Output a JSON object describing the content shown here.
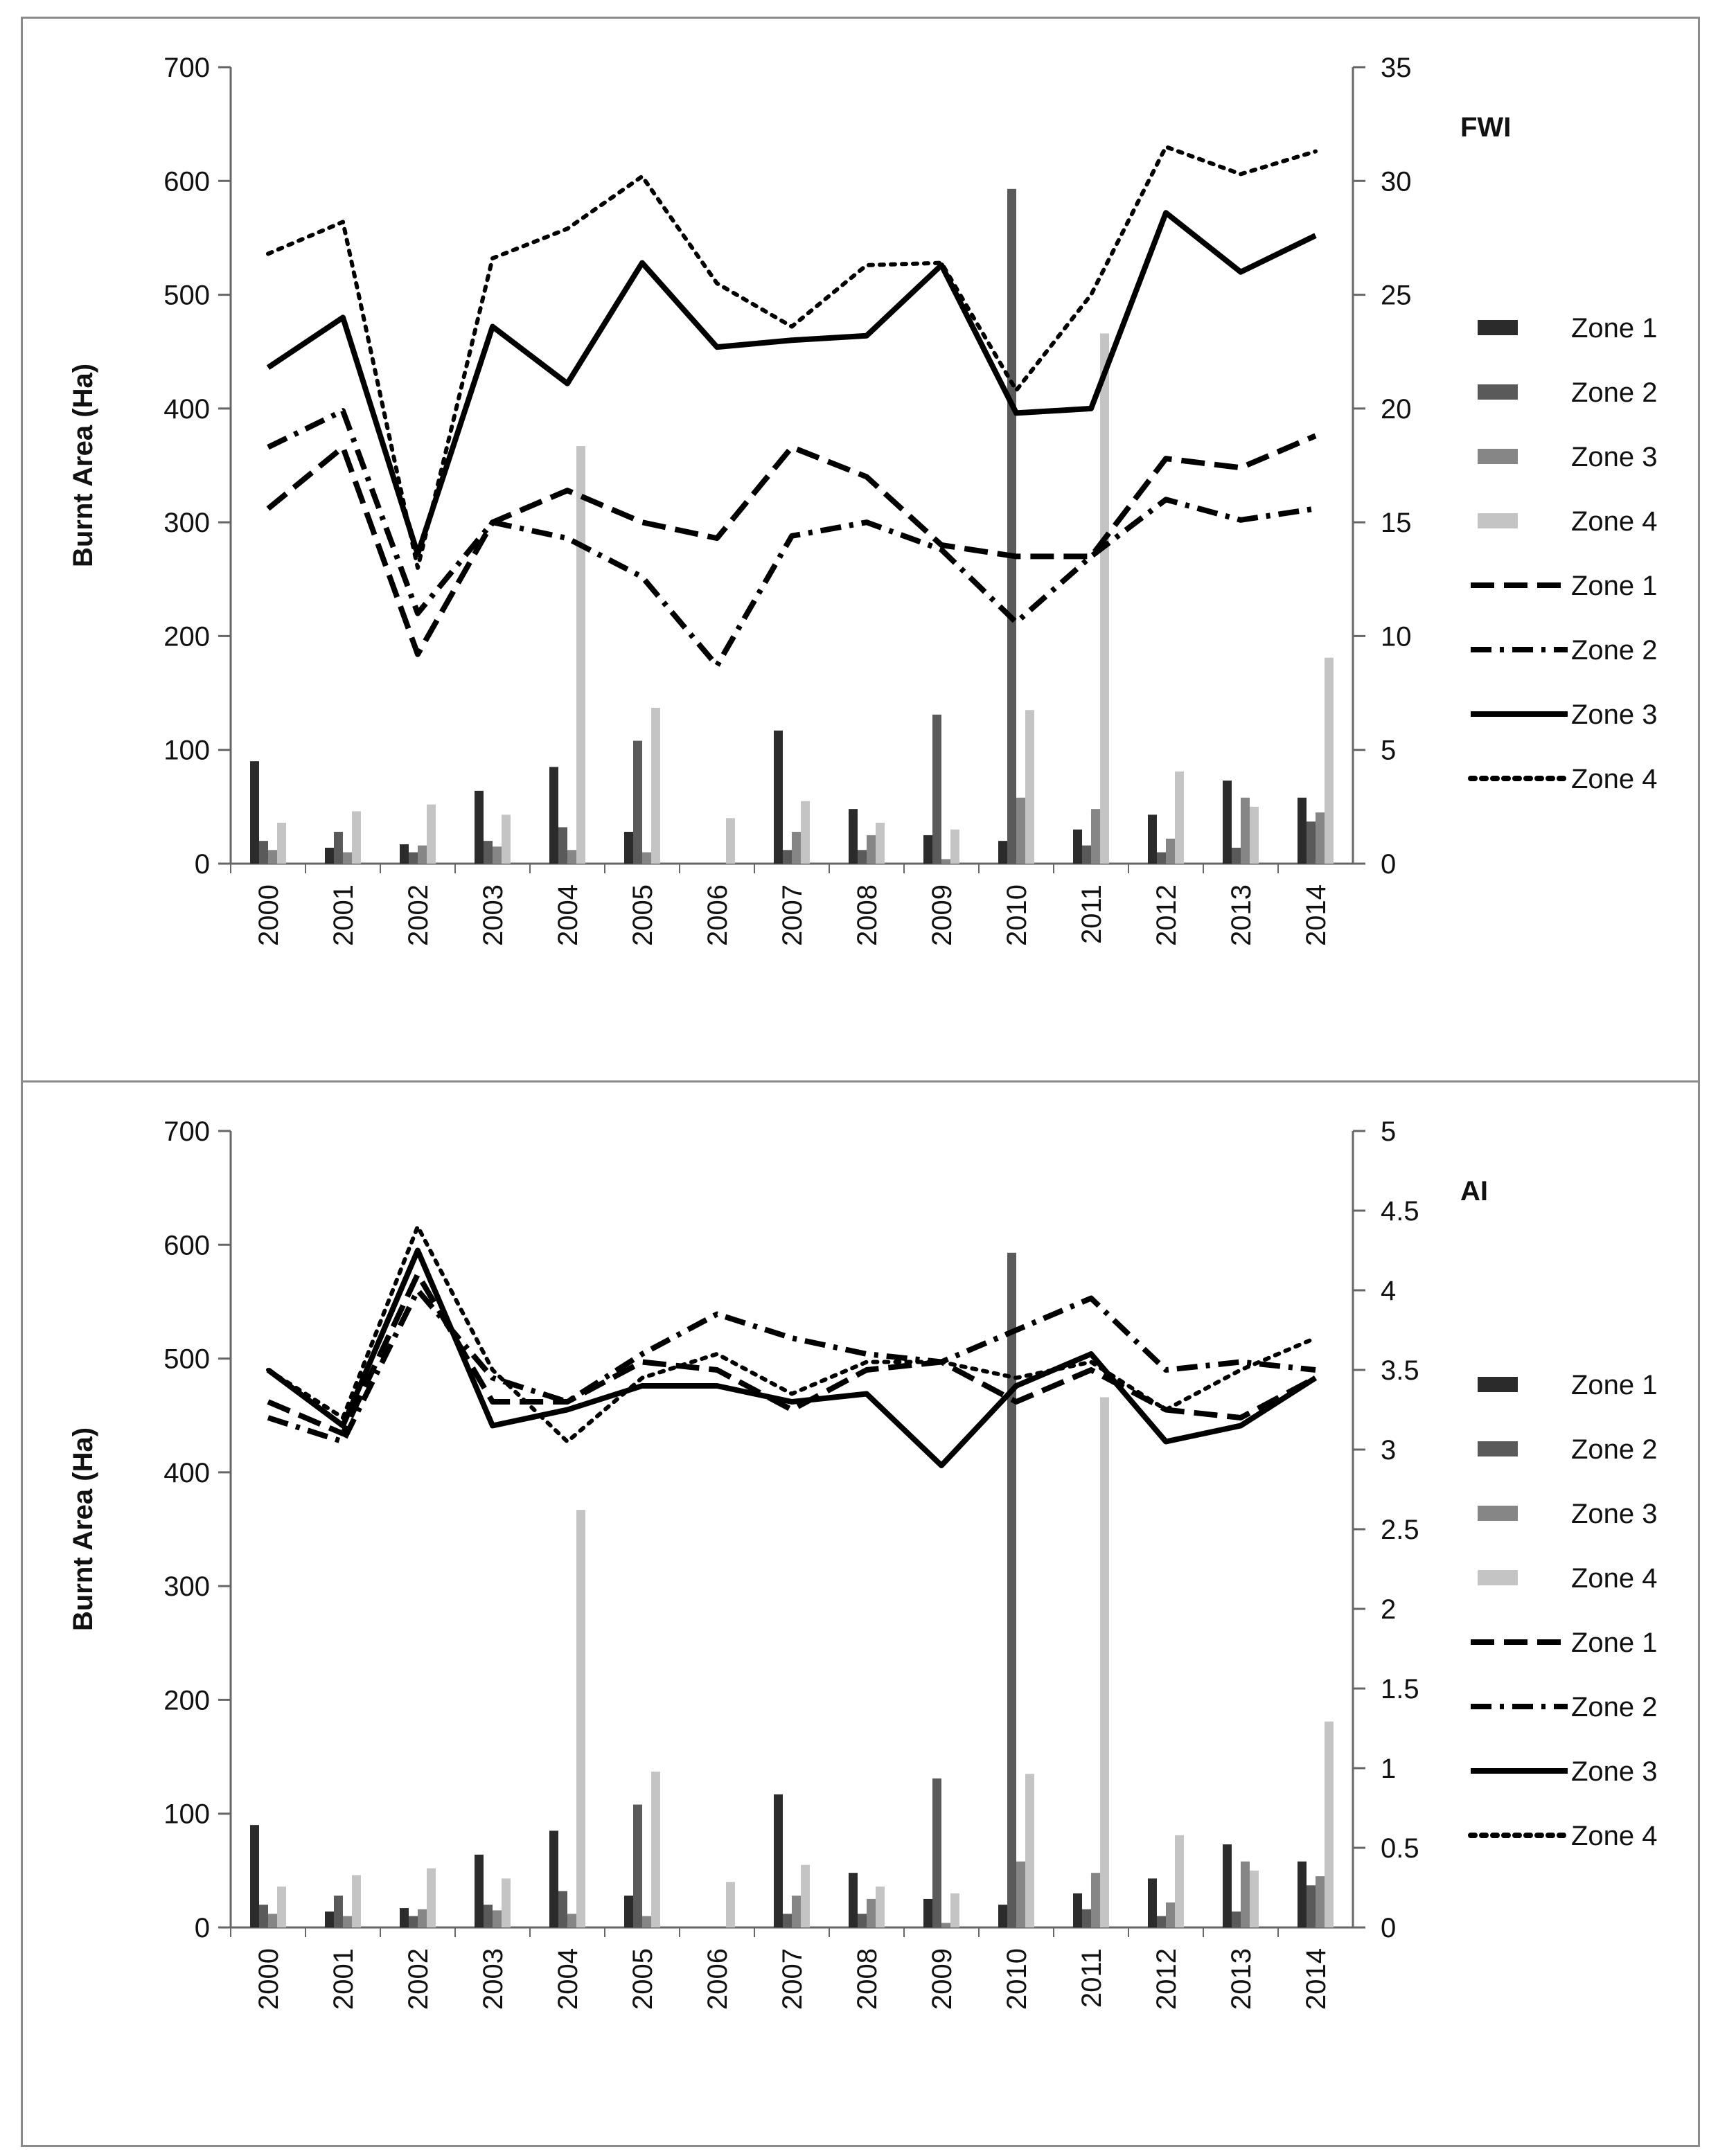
{
  "chart_data": [
    {
      "type": "bar+line",
      "title": "FWI",
      "ylabel": "Burnt Area (Ha)",
      "y2label": "",
      "ylim": [
        0,
        700
      ],
      "yticks": [
        "0",
        "100",
        "200",
        "300",
        "400",
        "500",
        "600",
        "700"
      ],
      "y2lim": [
        0,
        35
      ],
      "y2ticks": [
        "0",
        "5",
        "10",
        "15",
        "20",
        "25",
        "30",
        "35"
      ],
      "categories": [
        "2000",
        "2001",
        "2002",
        "2003",
        "2004",
        "2005",
        "2006",
        "2007",
        "2008",
        "2009",
        "2010",
        "2011",
        "2012",
        "2013",
        "2014"
      ],
      "bar_series": [
        {
          "name": "Zone 1",
          "color": "#2b2b2b",
          "values": [
            90,
            14,
            17,
            64,
            85,
            28,
            0,
            117,
            48,
            25,
            20,
            30,
            43,
            73,
            58
          ]
        },
        {
          "name": "Zone 2",
          "color": "#5a5a5a",
          "values": [
            20,
            28,
            10,
            20,
            32,
            108,
            0,
            12,
            12,
            131,
            593,
            16,
            10,
            14,
            37
          ]
        },
        {
          "name": "Zone 3",
          "color": "#868686",
          "values": [
            12,
            10,
            16,
            15,
            12,
            10,
            0,
            28,
            25,
            4,
            58,
            48,
            22,
            58,
            45
          ]
        },
        {
          "name": "Zone 4",
          "color": "#c4c4c4",
          "values": [
            36,
            46,
            52,
            43,
            367,
            137,
            40,
            55,
            36,
            30,
            135,
            466,
            81,
            50,
            181
          ]
        }
      ],
      "line_series": [
        {
          "name": "Zone 1",
          "style": "dash",
          "values": [
            15.6,
            18.3,
            9.2,
            15.0,
            16.4,
            15.0,
            14.3,
            18.3,
            17.0,
            14.0,
            13.5,
            13.5,
            17.8,
            17.4,
            18.8
          ]
        },
        {
          "name": "Zone 2",
          "style": "dashdot",
          "values": [
            18.3,
            19.9,
            11.0,
            15.0,
            14.3,
            12.6,
            8.7,
            14.4,
            15.0,
            13.8,
            10.6,
            13.5,
            16.0,
            15.1,
            15.6
          ]
        },
        {
          "name": "Zone 3",
          "style": "solid",
          "values": [
            21.8,
            24.0,
            13.6,
            23.6,
            21.1,
            26.4,
            22.7,
            23.0,
            23.2,
            26.3,
            19.8,
            20.0,
            28.6,
            26.0,
            27.6
          ]
        },
        {
          "name": "Zone 4",
          "style": "dotted",
          "values": [
            26.8,
            28.2,
            13.0,
            26.6,
            27.9,
            30.2,
            25.5,
            23.6,
            26.3,
            26.4,
            20.8,
            25.0,
            31.5,
            30.3,
            31.3
          ]
        }
      ],
      "legend_labels": [
        "Zone 1",
        "Zone 2",
        "Zone 3",
        "Zone 4",
        "Zone 1",
        "Zone 2",
        "Zone 3",
        "Zone 4"
      ]
    },
    {
      "type": "bar+line",
      "title": "AI",
      "ylabel": "Burnt Area (Ha)",
      "y2label": "",
      "ylim": [
        0,
        700
      ],
      "yticks": [
        "0",
        "100",
        "200",
        "300",
        "400",
        "500",
        "600",
        "700"
      ],
      "y2lim": [
        0,
        5
      ],
      "y2ticks": [
        "0",
        "0.5",
        "1",
        "1.5",
        "2",
        "2.5",
        "3",
        "3.5",
        "4",
        "4.5",
        "5"
      ],
      "categories": [
        "2000",
        "2001",
        "2002",
        "2003",
        "2004",
        "2005",
        "2006",
        "2007",
        "2008",
        "2009",
        "2010",
        "2011",
        "2012",
        "2013",
        "2014"
      ],
      "bar_series": [
        {
          "name": "Zone 1",
          "color": "#2b2b2b",
          "values": [
            90,
            14,
            17,
            64,
            85,
            28,
            0,
            117,
            48,
            25,
            20,
            30,
            43,
            73,
            58
          ]
        },
        {
          "name": "Zone 2",
          "color": "#5a5a5a",
          "values": [
            20,
            28,
            10,
            20,
            32,
            108,
            0,
            12,
            12,
            131,
            593,
            16,
            10,
            14,
            37
          ]
        },
        {
          "name": "Zone 3",
          "color": "#868686",
          "values": [
            12,
            10,
            16,
            15,
            12,
            10,
            0,
            28,
            25,
            4,
            58,
            48,
            22,
            58,
            45
          ]
        },
        {
          "name": "Zone 4",
          "color": "#c4c4c4",
          "values": [
            36,
            46,
            52,
            43,
            367,
            137,
            40,
            55,
            36,
            30,
            135,
            466,
            81,
            50,
            181
          ]
        }
      ],
      "line_series": [
        {
          "name": "Zone 1",
          "style": "dash",
          "values": [
            3.3,
            3.1,
            4.1,
            3.3,
            3.3,
            3.55,
            3.5,
            3.25,
            3.5,
            3.55,
            3.3,
            3.5,
            3.25,
            3.2,
            3.45
          ]
        },
        {
          "name": "Zone 2",
          "style": "dashdot",
          "values": [
            3.2,
            3.05,
            4.0,
            3.45,
            3.3,
            3.6,
            3.85,
            3.7,
            3.6,
            3.55,
            3.75,
            3.95,
            3.5,
            3.55,
            3.5
          ]
        },
        {
          "name": "Zone 3",
          "style": "solid",
          "values": [
            3.5,
            3.15,
            4.25,
            3.15,
            3.25,
            3.4,
            3.4,
            3.3,
            3.35,
            2.9,
            3.4,
            3.6,
            3.05,
            3.15,
            3.45
          ]
        },
        {
          "name": "Zone 4",
          "style": "dotted",
          "values": [
            3.5,
            3.2,
            4.4,
            3.5,
            3.05,
            3.45,
            3.6,
            3.35,
            3.55,
            3.55,
            3.45,
            3.55,
            3.25,
            3.5,
            3.7
          ]
        }
      ],
      "legend_labels": [
        "Zone 1",
        "Zone 2",
        "Zone 3",
        "Zone 4",
        "Zone 1",
        "Zone 2",
        "Zone 3",
        "Zone 4"
      ]
    }
  ]
}
